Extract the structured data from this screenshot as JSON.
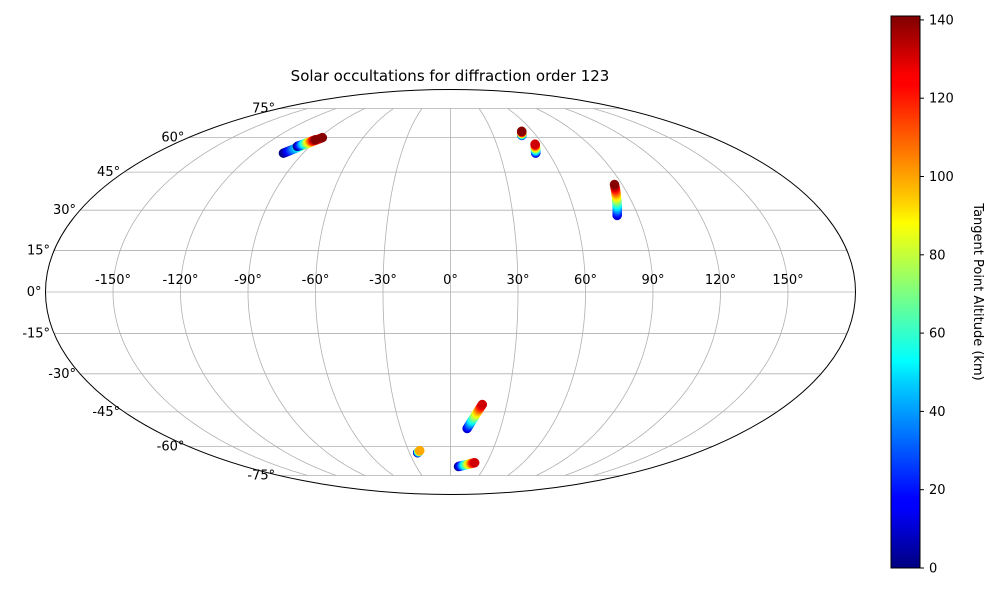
{
  "chart_data": {
    "type": "scatter",
    "projection": "mollweide",
    "title": "Solar occultations for diffraction order 123",
    "grid": true,
    "longitude_ticks": [
      "-150°",
      "-120°",
      "-90°",
      "-60°",
      "-30°",
      "0°",
      "30°",
      "60°",
      "90°",
      "120°",
      "150°"
    ],
    "longitude_tick_values": [
      -150,
      -120,
      -90,
      -60,
      -30,
      0,
      30,
      60,
      90,
      120,
      150
    ],
    "latitude_ticks": [
      "-75°",
      "-60°",
      "-45°",
      "-30°",
      "-15°",
      "0°",
      "15°",
      "30°",
      "45°",
      "60°",
      "75°"
    ],
    "latitude_tick_values": [
      -75,
      -60,
      -45,
      -30,
      -15,
      0,
      15,
      30,
      45,
      60,
      75
    ],
    "colorbar": {
      "label": "Tangent Point Altitude (km)",
      "range": [
        0,
        141
      ],
      "ticks": [
        "0",
        "20",
        "40",
        "60",
        "80",
        "100",
        "120",
        "140"
      ],
      "tick_values": [
        0,
        20,
        40,
        60,
        80,
        100,
        120,
        140
      ],
      "colormap": "jet"
    },
    "series": [
      {
        "lon_range": [
          -102,
          -88
        ],
        "lat_range": [
          53,
          60
        ],
        "altitude_range": [
          0,
          140
        ]
      },
      {
        "lon_range": [
          -98,
          -91
        ],
        "lat_range": [
          56,
          59
        ],
        "altitude_range": [
          0,
          140
        ]
      },
      {
        "lon_range": [
          50,
          52
        ],
        "lat_range": [
          61,
          63
        ],
        "altitude_range": [
          20,
          140
        ]
      },
      {
        "lon_range": [
          52,
          55
        ],
        "lat_range": [
          53,
          57
        ],
        "altitude_range": [
          10,
          130
        ]
      },
      {
        "lon_range": [
          80,
          86
        ],
        "lat_range": [
          28,
          40
        ],
        "altitude_range": [
          10,
          140
        ]
      },
      {
        "lon_range": [
          10,
          17
        ],
        "lat_range": [
          -52,
          -42
        ],
        "altitude_range": [
          10,
          130
        ]
      },
      {
        "lon_range": [
          7,
          20
        ],
        "lat_range": [
          -70,
          -68
        ],
        "altitude_range": [
          0,
          130
        ]
      },
      {
        "lon_range": [
          -24,
          -22
        ],
        "lat_range": [
          -63,
          -62
        ],
        "altitude_range": [
          0,
          100
        ]
      }
    ]
  }
}
